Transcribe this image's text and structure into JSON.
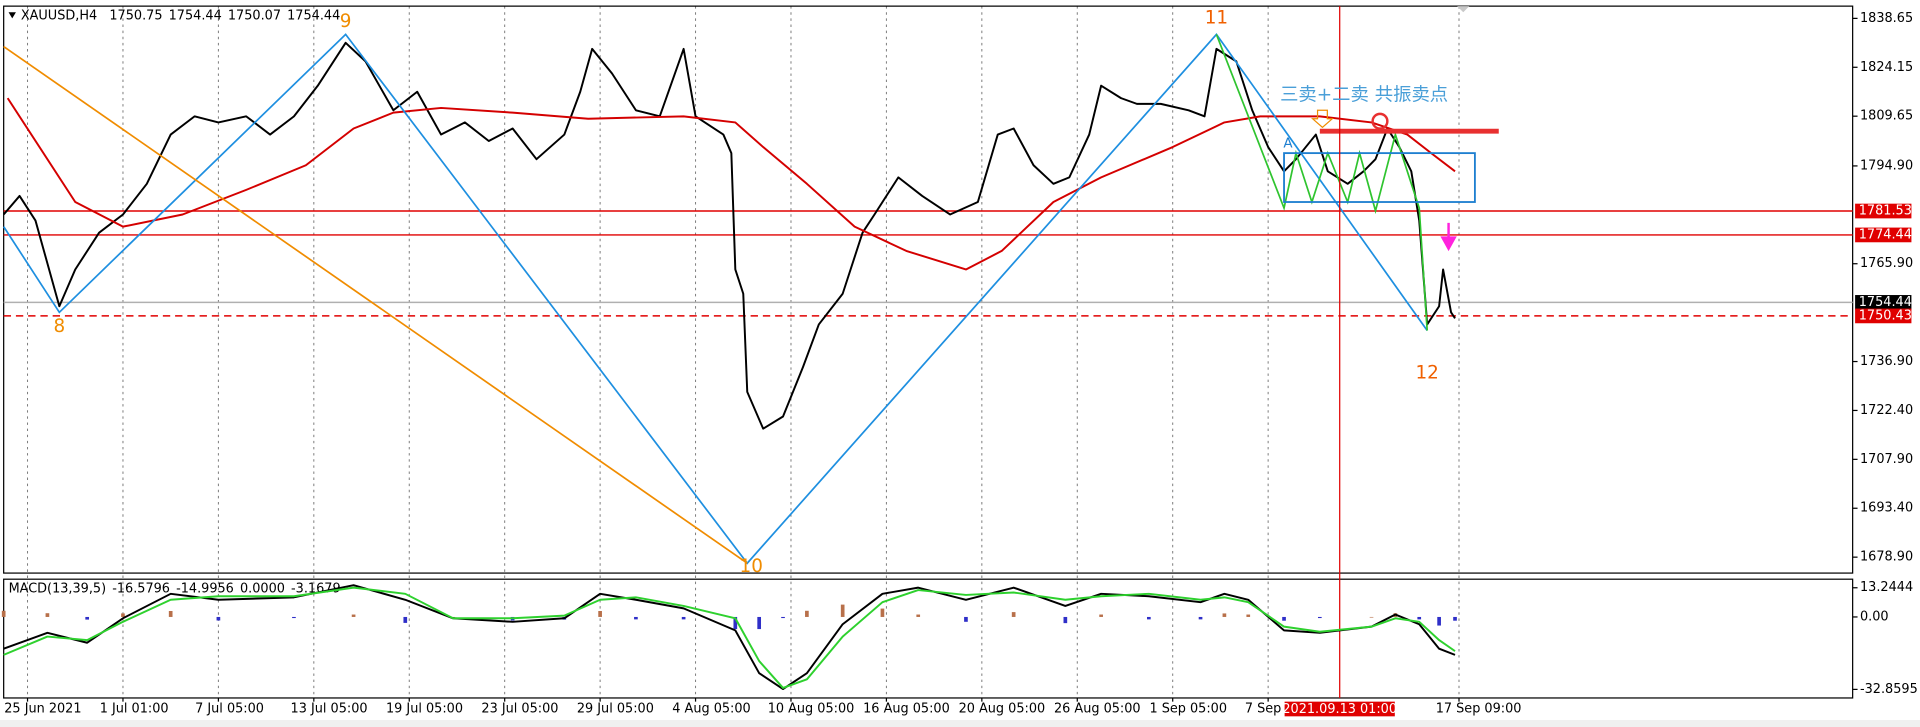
{
  "chart_data": [
    {
      "type": "line",
      "title": "XAUUSD,H4",
      "header_values": [
        1750.75,
        1754.44,
        1750.07,
        1754.44
      ],
      "xlim": [
        0,
        465
      ],
      "ylim": [
        1674.18,
        1842.28
      ],
      "grid": true,
      "yticks": [
        1838.65,
        1824.15,
        1809.65,
        {
          "value": 1794.9,
          "label": "1794.90"
        },
        {
          "value": 1765.9,
          "label": "1765.90"
        },
        {
          "value": 1736.9,
          "label": "1736.90"
        },
        {
          "value": 1722.4,
          "label": "1722.40"
        },
        {
          "value": 1707.9,
          "label": "1707.90"
        },
        {
          "value": 1693.4,
          "label": "1693.40"
        },
        {
          "value": 1678.9,
          "label": "1678.90"
        }
      ],
      "xticks": [
        {
          "value": 6,
          "label": "25 Jun 2021"
        },
        {
          "value": 30,
          "label": "1 Jul 01:00"
        },
        {
          "value": 54,
          "label": "7 Jul 05:00"
        },
        {
          "value": 78,
          "label": "13 Jul 05:00"
        },
        {
          "value": 102,
          "label": "19 Jul 05:00"
        },
        {
          "value": 126,
          "label": "23 Jul 05:00"
        },
        {
          "value": 150,
          "label": "29 Jul 05:00"
        },
        {
          "value": 174,
          "label": "4 Aug 05:00"
        },
        {
          "value": 198,
          "label": "10 Aug 05:00"
        },
        {
          "value": 222,
          "label": "16 Aug 05:00"
        },
        {
          "value": 246,
          "label": "20 Aug 05:00"
        },
        {
          "value": 270,
          "label": "26 Aug 05:00"
        },
        {
          "value": 294,
          "label": "1 Sep 05:00"
        },
        {
          "value": 318,
          "label": "7 Sep"
        },
        {
          "value": 366,
          "label": "17 Sep 09:00"
        }
      ],
      "series": [
        {
          "color": "#000000",
          "x": [
            0,
            4,
            8,
            14,
            18,
            24,
            30,
            36,
            42,
            48,
            54,
            61,
            67,
            73,
            79,
            86,
            91,
            98,
            104,
            110,
            116,
            122,
            128,
            134,
            141,
            145,
            148,
            153,
            159,
            165,
            171,
            174,
            181,
            183,
            184,
            186,
            187,
            191,
            196,
            201,
            205,
            211,
            216,
            219,
            225,
            231,
            238,
            245,
            250,
            254,
            259,
            264,
            268,
            273,
            276,
            281,
            285,
            291,
            298,
            302,
            305,
            310,
            314,
            318,
            322,
            325,
            330,
            333,
            338,
            342,
            345,
            348,
            351,
            354,
            356,
            358,
            361,
            362,
            364,
            365
          ],
          "values": [
            1780.5,
            1786.0,
            1778.7,
            1753.3,
            1764.2,
            1775.1,
            1780.5,
            1789.6,
            1804.2,
            1809.6,
            1807.8,
            1809.6,
            1804.2,
            1809.6,
            1818.7,
            1831.4,
            1825.9,
            1811.4,
            1816.9,
            1804.2,
            1807.8,
            1802.3,
            1806.0,
            1796.9,
            1804.2,
            1816.9,
            1829.6,
            1822.3,
            1811.4,
            1809.6,
            1829.6,
            1809.6,
            1804.2,
            1798.7,
            1764.2,
            1757.0,
            1727.9,
            1717.0,
            1720.6,
            1735.2,
            1747.9,
            1757.0,
            1775.1,
            1780.5,
            1791.5,
            1786.0,
            1780.5,
            1784.2,
            1804.2,
            1806.0,
            1795.1,
            1789.6,
            1791.5,
            1804.2,
            1818.7,
            1815.0,
            1813.3,
            1813.3,
            1811.4,
            1809.6,
            1829.6,
            1825.9,
            1811.4,
            1800.5,
            1793.3,
            1796.9,
            1804.2,
            1793.3,
            1789.6,
            1793.3,
            1796.9,
            1806.0,
            1800.5,
            1793.3,
            1778.7,
            1747.9,
            1753.3,
            1764.2,
            1751.5,
            1749.7
          ]
        },
        {
          "color": "#d40000",
          "x": [
            1,
            18,
            30,
            45,
            61,
            76,
            88,
            98,
            110,
            128,
            147,
            171,
            184,
            191,
            202,
            214,
            227,
            242,
            251,
            264,
            276,
            294,
            307,
            316,
            331,
            344,
            353,
            359,
            365
          ],
          "values": [
            1815.0,
            1784.2,
            1776.9,
            1780.5,
            1787.8,
            1795.1,
            1806.0,
            1810.7,
            1812.1,
            1810.7,
            1808.9,
            1809.6,
            1807.8,
            1800.5,
            1789.6,
            1776.9,
            1769.7,
            1764.2,
            1769.7,
            1784.2,
            1791.5,
            1800.5,
            1807.8,
            1809.6,
            1809.6,
            1807.8,
            1804.2,
            1798.7,
            1793.3
          ]
        }
      ],
      "zigzags": [
        {
          "color": "#1e8fe0",
          "x": [
            0,
            14,
            86,
            187,
            305,
            358
          ],
          "values": [
            1776.9,
            1751.5,
            1833.9,
            1677.1,
            1833.9,
            1746.1
          ]
        },
        {
          "color": "#f08c00",
          "x": [
            0,
            187
          ],
          "values": [
            1830.3,
            1677.1
          ]
        },
        {
          "color": "#2fc42f",
          "x": [
            305,
            322,
            325,
            329,
            333,
            338,
            341,
            345,
            350,
            356,
            358
          ],
          "values": [
            1833.9,
            1782.4,
            1798.7,
            1784.2,
            1798.7,
            1784.2,
            1798.7,
            1781.6,
            1804.2,
            1782.4,
            1746.1
          ]
        }
      ],
      "levels": [
        {
          "value": 1781.53,
          "color": "#e00000",
          "dashed": false
        },
        {
          "value": 1774.44,
          "color": "#e00000",
          "dashed": false
        },
        {
          "value": 1754.44,
          "color": "#b0b0b0",
          "label_color": "#000000",
          "dashed": false
        },
        {
          "value": 1750.43,
          "color": "#e00000",
          "dashed": true
        }
      ],
      "box": {
        "x": [
          322,
          370
        ],
        "y": [
          1784.2,
          1798.7
        ],
        "color": "#1e7fd0"
      },
      "resistance": {
        "x": [
          331,
          376
        ],
        "value": 1805.2,
        "color": "#e83030"
      },
      "crosshair": {
        "x": 336,
        "label": "2021.09.13 01:00",
        "color": "#e00000"
      },
      "annotations": [
        {
          "text": "8",
          "x": 14,
          "y": 1747.1,
          "color": "#f08c00"
        },
        {
          "text": "9",
          "x": 86,
          "y": 1837.6,
          "color": "#f08c00"
        },
        {
          "text": "10",
          "x": 188,
          "y": 1676.0,
          "color": "#f08c00"
        },
        {
          "text": "11",
          "x": 305,
          "y": 1838.65,
          "color": "#f06000"
        },
        {
          "text": "12",
          "x": 358,
          "y": 1733.3,
          "color": "#f06000"
        },
        {
          "text": "三卖+二卖 共振卖点",
          "x": 321,
          "y": 1815.8,
          "color": "#4a9fd8"
        },
        {
          "text": "A",
          "x": 323,
          "y": 1801.6,
          "color": "#1e7fd0"
        }
      ]
    },
    {
      "type": "line",
      "title": "MACD(13,39,5)",
      "header_values": [
        -16.5796,
        -14.9956,
        {
          "value": 0,
          "label": "0.0000"
        },
        -3.1679
      ],
      "xlim": [
        0,
        465
      ],
      "ylim": [
        -36.75,
        17.13
      ],
      "yticks": [
        13.2444,
        {
          "value": 0,
          "label": "0.00"
        },
        -32.8595
      ],
      "series": [
        {
          "color": "#000000",
          "x": [
            0,
            11,
            21,
            30,
            42,
            54,
            73,
            88,
            101,
            113,
            128,
            141,
            150,
            159,
            171,
            184,
            190,
            196,
            202,
            211,
            221,
            230,
            242,
            254,
            267,
            276,
            288,
            301,
            307,
            313,
            322,
            331,
            344,
            350,
            356,
            361,
            365
          ],
          "values": [
            -14.4,
            -7.2,
            -11.7,
            -0.6,
            10.5,
            7.8,
            8.9,
            14.4,
            7.8,
            -0.6,
            -2.2,
            -0.6,
            10.5,
            7.8,
            3.9,
            -6.1,
            -25.5,
            -32.7,
            -25.5,
            -3.3,
            10.5,
            13.3,
            7.8,
            13.3,
            5.0,
            10.5,
            9.4,
            6.7,
            10.5,
            7.8,
            -6.1,
            -7.2,
            -4.4,
            1.1,
            -3.3,
            -14.4,
            -17.2
          ]
        },
        {
          "color": "#2ed12e",
          "x": [
            0,
            11,
            21,
            30,
            42,
            54,
            73,
            88,
            101,
            113,
            128,
            141,
            150,
            159,
            171,
            184,
            190,
            196,
            202,
            211,
            221,
            230,
            242,
            254,
            267,
            276,
            288,
            301,
            307,
            313,
            322,
            331,
            344,
            350,
            356,
            361,
            365
          ],
          "values": [
            -17.2,
            -8.9,
            -10.5,
            -2.2,
            7.8,
            9.4,
            9.4,
            13.3,
            10.5,
            -0.6,
            -0.6,
            0.6,
            7.8,
            8.9,
            5.0,
            -0.6,
            -20.0,
            -32.2,
            -28.3,
            -8.9,
            6.7,
            12.2,
            10.0,
            11.1,
            7.8,
            9.4,
            10.5,
            7.8,
            8.9,
            6.7,
            -4.4,
            -6.7,
            -4.4,
            -0.6,
            -2.2,
            -10.5,
            -15.5
          ]
        }
      ],
      "histogram": {
        "positive_color": "#b8704a",
        "negative_color": "#2f2fc8",
        "x": [
          0,
          11,
          21,
          30,
          42,
          54,
          73,
          88,
          101,
          113,
          128,
          141,
          150,
          159,
          171,
          184,
          190,
          196,
          202,
          211,
          221,
          230,
          242,
          254,
          267,
          276,
          288,
          301,
          307,
          313,
          322,
          331,
          344,
          350,
          356,
          361,
          365
        ],
        "values": [
          2.8,
          1.7,
          -1.2,
          1.6,
          2.7,
          -1.6,
          -0.5,
          1.1,
          -2.7,
          0,
          -1.6,
          -1.2,
          2.7,
          -1.1,
          -1.1,
          -5.5,
          -5.5,
          -0.5,
          2.8,
          5.6,
          3.8,
          1.1,
          -2.2,
          2.2,
          -2.8,
          1.1,
          -1.1,
          -1.1,
          1.6,
          1.1,
          -1.7,
          -0.5,
          0,
          1.7,
          -1.1,
          -3.9,
          -1.7
        ]
      }
    }
  ]
}
